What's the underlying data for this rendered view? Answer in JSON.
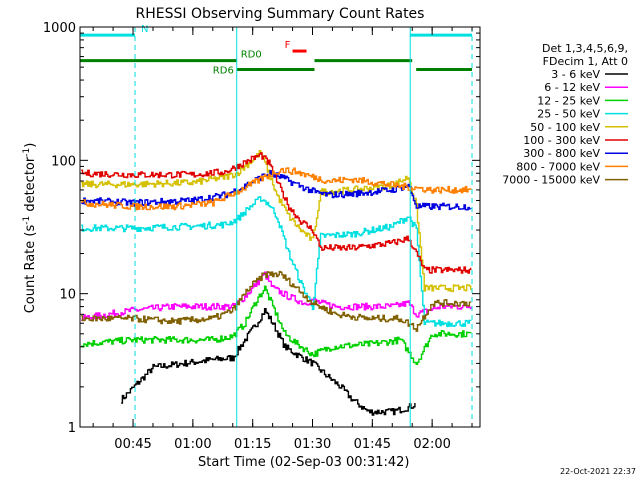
{
  "chart_data": {
    "type": "line",
    "title": "RHESSI Observing Summary Count Rates",
    "xlabel": "Start Time (02-Sep-03 00:31:42)",
    "ylabel": "Count Rate (s⁻¹ detector⁻¹)",
    "ylabel_base": "Count Rate (s",
    "ylabel_mid": " detector",
    "ylabel_end": ")",
    "ylabel_sup": "-1",
    "y_scale": "log",
    "ylim": [
      1,
      1000
    ],
    "xlim": [
      "00:31:42",
      "02:12:00"
    ],
    "x_ticks": [
      "00:45",
      "01:00",
      "01:15",
      "01:30",
      "01:45",
      "02:00"
    ],
    "y_ticks": [
      "1",
      "10",
      "100",
      "1000"
    ],
    "timestamp": "22-Oct-2021 22:37",
    "legend": {
      "header1": "Det 1,3,4,5,6,9,",
      "header2": "FDecim 1, Att 0",
      "entries": [
        {
          "label": "3 - 6 keV",
          "color": "#000000"
        },
        {
          "label": "6 - 12 keV",
          "color": "#ff00ff"
        },
        {
          "label": "12 - 25 keV",
          "color": "#00d000"
        },
        {
          "label": "25 - 50 keV",
          "color": "#00e0e0"
        },
        {
          "label": "50 - 100 keV",
          "color": "#d4c000"
        },
        {
          "label": "100 - 300 keV",
          "color": "#e00000"
        },
        {
          "label": "300 - 800 keV",
          "color": "#0000e0"
        },
        {
          "label": "800 - 7000 keV",
          "color": "#ff8000"
        },
        {
          "label": "7000 - 15000 keV",
          "color": "#806000"
        }
      ]
    },
    "flag_bars": [
      {
        "label": "N",
        "color": "#00e0e0",
        "y": 870,
        "segments": [
          [
            "00:31:42",
            "00:45:30"
          ],
          [
            "01:54:30",
            "02:10:00"
          ]
        ]
      },
      {
        "label": "F",
        "color": "#ff0000",
        "y": 660,
        "segments": [
          [
            "01:25:00",
            "01:28:30"
          ]
        ]
      },
      {
        "label": "RD0",
        "color": "#008000",
        "y": 560,
        "segments": [
          [
            "00:31:42",
            "01:11:00"
          ],
          [
            "01:30:30",
            "01:55:00"
          ]
        ]
      },
      {
        "label": "RD6",
        "color": "#008000",
        "y": 480,
        "segments": [
          [
            "01:11:00",
            "01:30:30"
          ],
          [
            "01:56:00",
            "02:10:00"
          ]
        ]
      }
    ],
    "vertical_markers": [
      {
        "time": "00:45:30",
        "color": "#00e0e0",
        "style": "dashed"
      },
      {
        "time": "01:11:00",
        "color": "#00e0e0",
        "style": "solid"
      },
      {
        "time": "01:54:30",
        "color": "#00e0e0",
        "style": "solid"
      },
      {
        "time": "02:10:00",
        "color": "#00e0e0",
        "style": "dashed"
      }
    ],
    "series": [
      {
        "name": "3 - 6 keV",
        "color": "#000000",
        "x": [
          "00:42:00",
          "00:50:00",
          "01:05:00",
          "01:10:00",
          "01:13:00",
          "01:16:00",
          "01:18:00",
          "01:20:00",
          "01:23:00",
          "01:26:00",
          "01:30:00",
          "01:33:00",
          "01:37:00",
          "01:40:00",
          "01:44:00",
          "01:50:00",
          "01:54:00",
          "01:56:00"
        ],
        "values": [
          1.6,
          2.8,
          3.2,
          3.3,
          4.5,
          6,
          7.5,
          6,
          4,
          3.5,
          3,
          2.5,
          2,
          1.6,
          1.3,
          1.3,
          1.4,
          1.5
        ]
      },
      {
        "name": "6 - 12 keV",
        "color": "#ff00ff",
        "x": [
          "00:32:00",
          "00:45:00",
          "00:55:00",
          "01:05:00",
          "01:10:00",
          "01:13:00",
          "01:16:00",
          "01:18:00",
          "01:20:00",
          "01:24:00",
          "01:28:00",
          "01:30:00",
          "01:32:00",
          "01:36:00",
          "01:44:00",
          "01:50:00",
          "01:54:00",
          "01:56:00",
          "02:02:00",
          "02:10:00"
        ],
        "values": [
          6.5,
          7.5,
          8,
          8,
          8,
          9.5,
          12,
          14,
          11,
          9.5,
          8.5,
          9,
          8.5,
          8,
          8,
          8,
          8.5,
          7,
          8,
          8
        ]
      },
      {
        "name": "12 - 25 keV",
        "color": "#00d000",
        "x": [
          "00:32:00",
          "00:45:00",
          "00:55:00",
          "01:05:00",
          "01:10:00",
          "01:13:00",
          "01:16:00",
          "01:18:00",
          "01:20:00",
          "01:23:00",
          "01:26:00",
          "01:30:00",
          "01:35:00",
          "01:45:00",
          "01:52:00",
          "01:56:00",
          "02:00:00",
          "02:10:00"
        ],
        "values": [
          4.2,
          4.5,
          4.5,
          4.5,
          4.8,
          6,
          9,
          11,
          8,
          5,
          4.2,
          3.5,
          4,
          4.2,
          4.5,
          3,
          5,
          5
        ]
      },
      {
        "name": "25 - 50 keV",
        "color": "#00e0e0",
        "x": [
          "00:32:00",
          "00:45:00",
          "01:00:00",
          "01:08:00",
          "01:11:00",
          "01:14:00",
          "01:17:00",
          "01:19:00",
          "01:21:00",
          "01:24:00",
          "01:27:00",
          "01:30:00",
          "01:32:00",
          "01:40:00",
          "01:50:00",
          "01:54:00",
          "01:56:00",
          "01:58:00",
          "02:10:00"
        ],
        "values": [
          31,
          31,
          32,
          33,
          36,
          44,
          52,
          47,
          38,
          20,
          12,
          8,
          27,
          28,
          32,
          38,
          30,
          6,
          6
        ]
      },
      {
        "name": "50 - 100 keV",
        "color": "#d4c000",
        "x": [
          "00:32:00",
          "00:45:00",
          "01:00:00",
          "01:08:00",
          "01:11:00",
          "01:14:00",
          "01:17:00",
          "01:19:00",
          "01:21:00",
          "01:24:00",
          "01:27:00",
          "01:30:00",
          "01:32:00",
          "01:40:00",
          "01:50:00",
          "01:54:00",
          "01:56:00",
          "01:58:00",
          "02:10:00"
        ],
        "values": [
          66,
          66,
          68,
          75,
          80,
          95,
          115,
          80,
          55,
          38,
          30,
          25,
          58,
          60,
          65,
          75,
          45,
          11,
          11
        ]
      },
      {
        "name": "100 - 300 keV",
        "color": "#e00000",
        "x": [
          "00:32:00",
          "00:45:00",
          "01:00:00",
          "01:08:00",
          "01:11:00",
          "01:14:00",
          "01:17:00",
          "01:19:00",
          "01:21:00",
          "01:24:00",
          "01:27:00",
          "01:30:00",
          "01:32:00",
          "01:40:00",
          "01:50:00",
          "01:54:00",
          "01:56:00",
          "01:58:00",
          "02:10:00"
        ],
        "values": [
          80,
          78,
          78,
          82,
          90,
          100,
          110,
          95,
          70,
          45,
          35,
          30,
          22,
          22,
          24,
          26,
          20,
          15,
          15
        ]
      },
      {
        "name": "300 - 800 keV",
        "color": "#0000e0",
        "x": [
          "00:32:00",
          "00:45:00",
          "01:00:00",
          "01:08:00",
          "01:12:00",
          "01:16:00",
          "01:19:00",
          "01:22:00",
          "01:25:00",
          "01:28:00",
          "01:31:00",
          "01:34:00",
          "01:40:00",
          "01:50:00",
          "01:54:00",
          "01:56:00",
          "02:00:00",
          "02:10:00"
        ],
        "values": [
          50,
          48,
          50,
          55,
          62,
          72,
          80,
          75,
          68,
          62,
          57,
          55,
          56,
          60,
          65,
          45,
          45,
          45
        ]
      },
      {
        "name": "800 - 7000 keV",
        "color": "#ff8000",
        "x": [
          "00:32:00",
          "00:45:00",
          "00:55:00",
          "01:05:00",
          "01:12:00",
          "01:18:00",
          "01:22:00",
          "01:26:00",
          "01:30:00",
          "01:34:00",
          "01:40:00",
          "01:46:00",
          "01:52:00",
          "01:56:00",
          "02:00:00",
          "02:10:00"
        ],
        "values": [
          48,
          45,
          45,
          48,
          60,
          75,
          85,
          82,
          75,
          70,
          72,
          68,
          64,
          62,
          60,
          60
        ]
      },
      {
        "name": "7000 - 15000 keV",
        "color": "#806000",
        "x": [
          "00:32:00",
          "00:45:00",
          "00:55:00",
          "01:05:00",
          "01:10:00",
          "01:14:00",
          "01:18:00",
          "01:22:00",
          "01:26:00",
          "01:30:00",
          "01:36:00",
          "01:44:00",
          "01:52:00",
          "01:56:00",
          "02:00:00",
          "02:10:00"
        ],
        "values": [
          6.5,
          6.5,
          6.2,
          6.5,
          7.5,
          11,
          14,
          14,
          11,
          8.5,
          7,
          6.5,
          6.5,
          5.5,
          8.5,
          8.5
        ]
      }
    ]
  }
}
